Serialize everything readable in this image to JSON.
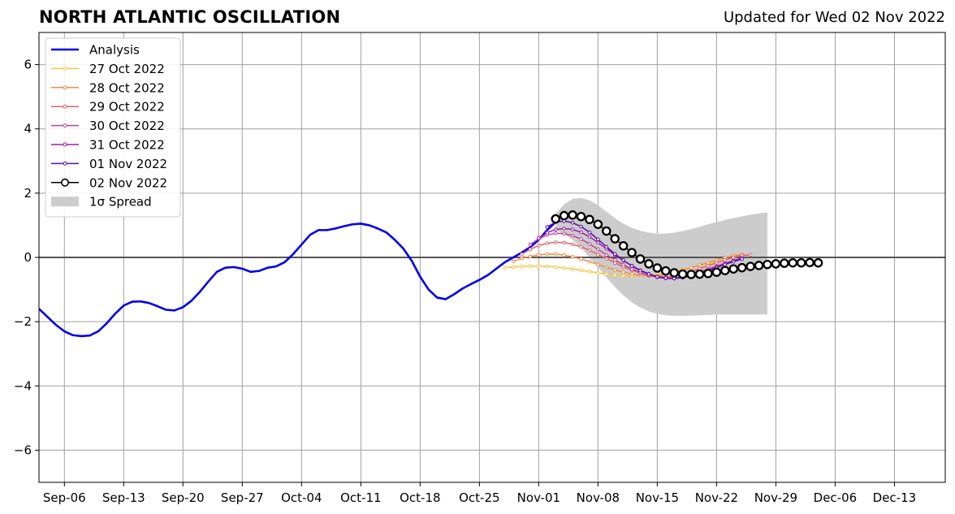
{
  "header": {
    "title": "NORTH ATLANTIC OSCILLATION",
    "updated": "Updated for Wed 02 Nov 2022"
  },
  "chart_data": {
    "type": "line",
    "title": "NORTH ATLANTIC OSCILLATION",
    "xlabel": "",
    "ylabel": "",
    "x_range": [
      "2022-09-03",
      "2022-12-19"
    ],
    "ylim": [
      -7,
      7
    ],
    "grid": true,
    "legend_position": "upper-left",
    "x_ticks": [
      "Sep-06",
      "Sep-13",
      "Sep-20",
      "Sep-27",
      "Oct-04",
      "Oct-11",
      "Oct-18",
      "Oct-25",
      "Nov-01",
      "Nov-08",
      "Nov-15",
      "Nov-22",
      "Nov-29",
      "Dec-06",
      "Dec-13"
    ],
    "y_ticks": [
      -6,
      -4,
      -2,
      0,
      2,
      4,
      6
    ],
    "y_tick_labels": [
      "−6",
      "−4",
      "−2",
      "0",
      "2",
      "4",
      "6"
    ],
    "series": [
      {
        "name": "Analysis",
        "color": "#0000ee",
        "marker": "none",
        "start": "2022-09-03",
        "values": [
          -1.6,
          -1.85,
          -2.1,
          -2.3,
          -2.42,
          -2.45,
          -2.43,
          -2.3,
          -2.05,
          -1.75,
          -1.5,
          -1.38,
          -1.37,
          -1.42,
          -1.52,
          -1.63,
          -1.65,
          -1.55,
          -1.35,
          -1.07,
          -0.75,
          -0.45,
          -0.32,
          -0.3,
          -0.35,
          -0.45,
          -0.42,
          -0.32,
          -0.28,
          -0.15,
          0.1,
          0.4,
          0.7,
          0.85,
          0.85,
          0.9,
          0.97,
          1.03,
          1.05,
          1.0,
          0.9,
          0.78,
          0.55,
          0.28,
          -0.1,
          -0.6,
          -1.0,
          -1.25,
          -1.3,
          -1.15,
          -0.97,
          -0.83,
          -0.7,
          -0.55,
          -0.35,
          -0.15,
          0.0,
          0.15,
          0.32,
          0.55,
          0.85,
          1.1
        ]
      },
      {
        "name": "27 Oct 2022",
        "color": "#f8c53a",
        "marker": "dot",
        "start": "2022-10-28",
        "values": [
          -0.32,
          -0.3,
          -0.28,
          -0.27,
          -0.27,
          -0.28,
          -0.3,
          -0.33,
          -0.36,
          -0.4,
          -0.44,
          -0.48,
          -0.52,
          -0.55,
          -0.57,
          -0.58,
          -0.57,
          -0.55,
          -0.52,
          -0.48,
          -0.43,
          -0.38,
          -0.32,
          -0.26,
          -0.2,
          -0.14,
          -0.08,
          -0.02
        ]
      },
      {
        "name": "28 Oct 2022",
        "color": "#f08a4b",
        "marker": "dot",
        "start": "2022-10-29",
        "values": [
          -0.12,
          -0.03,
          0.03,
          0.08,
          0.1,
          0.1,
          0.07,
          0.02,
          -0.05,
          -0.13,
          -0.22,
          -0.31,
          -0.39,
          -0.46,
          -0.52,
          -0.56,
          -0.58,
          -0.57,
          -0.53,
          -0.47,
          -0.4,
          -0.32,
          -0.24,
          -0.16,
          -0.08,
          -0.01,
          0.05,
          0.09
        ]
      },
      {
        "name": "29 Oct 2022",
        "color": "#e0606e",
        "marker": "dot",
        "start": "2022-10-30",
        "values": [
          0.1,
          0.25,
          0.37,
          0.44,
          0.47,
          0.46,
          0.41,
          0.33,
          0.22,
          0.09,
          -0.04,
          -0.17,
          -0.29,
          -0.4,
          -0.49,
          -0.56,
          -0.6,
          -0.61,
          -0.58,
          -0.52,
          -0.44,
          -0.35,
          -0.26,
          -0.17,
          -0.08,
          0.0,
          0.06,
          0.08
        ]
      },
      {
        "name": "30 Oct 2022",
        "color": "#c0458f",
        "marker": "dot",
        "start": "2022-10-31",
        "values": [
          0.4,
          0.58,
          0.7,
          0.75,
          0.74,
          0.68,
          0.57,
          0.42,
          0.25,
          0.08,
          -0.08,
          -0.23,
          -0.36,
          -0.47,
          -0.56,
          -0.62,
          -0.65,
          -0.64,
          -0.6,
          -0.53,
          -0.45,
          -0.36,
          -0.27,
          -0.18,
          -0.1,
          -0.04
        ]
      },
      {
        "name": "31 Oct 2022",
        "color": "#9a1ea8",
        "marker": "dot",
        "start": "2022-11-01",
        "values": [
          0.6,
          0.77,
          0.87,
          0.9,
          0.87,
          0.78,
          0.64,
          0.46,
          0.27,
          0.08,
          -0.1,
          -0.26,
          -0.4,
          -0.51,
          -0.6,
          -0.65,
          -0.66,
          -0.63,
          -0.57,
          -0.49,
          -0.4,
          -0.3,
          -0.2,
          -0.1,
          -0.02
        ]
      },
      {
        "name": "01 Nov 2022",
        "color": "#5b0fa8",
        "marker": "dot",
        "start": "2022-11-02",
        "values": [
          0.95,
          1.1,
          1.13,
          1.08,
          0.96,
          0.78,
          0.56,
          0.33,
          0.11,
          -0.09,
          -0.27,
          -0.41,
          -0.52,
          -0.6,
          -0.64,
          -0.65,
          -0.63,
          -0.58,
          -0.51,
          -0.42,
          -0.32,
          -0.22,
          -0.13,
          -0.05
        ]
      },
      {
        "name": "02 Nov 2022",
        "color": "#000000",
        "marker": "open-circle",
        "start": "2022-11-03",
        "values": [
          1.2,
          1.3,
          1.32,
          1.27,
          1.18,
          1.03,
          0.82,
          0.58,
          0.36,
          0.15,
          -0.05,
          -0.2,
          -0.33,
          -0.42,
          -0.48,
          -0.52,
          -0.53,
          -0.52,
          -0.5,
          -0.46,
          -0.41,
          -0.36,
          -0.32,
          -0.28,
          -0.25,
          -0.22,
          -0.2,
          -0.18,
          -0.17,
          -0.17,
          -0.16,
          -0.17
        ]
      }
    ],
    "spread": {
      "name": "1σ Spread",
      "color": "#cccccc",
      "start": "2022-11-03",
      "upper": [
        1.35,
        1.65,
        1.82,
        1.85,
        1.78,
        1.62,
        1.42,
        1.22,
        1.05,
        0.92,
        0.83,
        0.77,
        0.74,
        0.74,
        0.77,
        0.82,
        0.88,
        0.95,
        1.03,
        1.1,
        1.17,
        1.23,
        1.28,
        1.33,
        1.37,
        1.4
      ],
      "lower": [
        0.85,
        0.72,
        0.55,
        0.3,
        0.0,
        -0.3,
        -0.62,
        -0.92,
        -1.18,
        -1.4,
        -1.56,
        -1.68,
        -1.76,
        -1.8,
        -1.82,
        -1.82,
        -1.81,
        -1.8,
        -1.79,
        -1.78,
        -1.78,
        -1.78,
        -1.78,
        -1.78,
        -1.78,
        -1.78
      ]
    }
  }
}
